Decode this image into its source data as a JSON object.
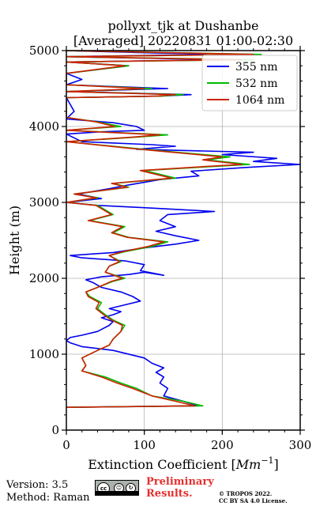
{
  "chart_data": {
    "type": "line",
    "title_line1": "pollyxt_tjk at Dushanbe",
    "title_line2": "[Averaged] 20220831 01:00-02:30",
    "xlabel": "Extinction Coefficient [",
    "xlabel_unit": "Mm",
    "xlabel_exp": "−1",
    "xlabel_close": "]",
    "ylabel": "Height (m)",
    "xlim": [
      0,
      300
    ],
    "ylim": [
      0,
      5000
    ],
    "xticks": [
      "0",
      "100",
      "200",
      "300"
    ],
    "yticks": [
      "0",
      "1000",
      "2000",
      "3000",
      "4000",
      "5000"
    ],
    "grid": true,
    "legend_position": "upper-right",
    "series": [
      {
        "name": "355 nm",
        "color": "#0000ee",
        "points": [
          [
            0,
            300
          ],
          [
            170,
            320
          ],
          [
            150,
            380
          ],
          [
            125,
            450
          ],
          [
            130,
            550
          ],
          [
            120,
            620
          ],
          [
            125,
            700
          ],
          [
            115,
            760
          ],
          [
            125,
            820
          ],
          [
            110,
            880
          ],
          [
            100,
            950
          ],
          [
            60,
            1050
          ],
          [
            20,
            1100
          ],
          [
            5,
            1150
          ],
          [
            0,
            1180
          ],
          [
            5,
            1220
          ],
          [
            20,
            1250
          ],
          [
            40,
            1300
          ],
          [
            55,
            1380
          ],
          [
            60,
            1430
          ],
          [
            45,
            1480
          ],
          [
            60,
            1520
          ],
          [
            70,
            1560
          ],
          [
            55,
            1600
          ],
          [
            75,
            1650
          ],
          [
            95,
            1700
          ],
          [
            85,
            1760
          ],
          [
            70,
            1820
          ],
          [
            45,
            1880
          ],
          [
            35,
            1940
          ],
          [
            25,
            1980
          ],
          [
            45,
            2020
          ],
          [
            80,
            2050
          ],
          [
            100,
            2080
          ],
          [
            125,
            2040
          ],
          [
            95,
            2100
          ],
          [
            100,
            2180
          ],
          [
            75,
            2230
          ],
          [
            20,
            2270
          ],
          [
            5,
            2300
          ],
          [
            60,
            2340
          ],
          [
            100,
            2400
          ],
          [
            140,
            2450
          ],
          [
            170,
            2500
          ],
          [
            140,
            2560
          ],
          [
            115,
            2620
          ],
          [
            140,
            2680
          ],
          [
            120,
            2760
          ],
          [
            130,
            2840
          ],
          [
            190,
            2880
          ],
          [
            100,
            2930
          ],
          [
            40,
            2960
          ],
          [
            0,
            3000
          ],
          [
            45,
            3050
          ],
          [
            15,
            3110
          ],
          [
            55,
            3180
          ],
          [
            80,
            3230
          ],
          [
            120,
            3300
          ],
          [
            170,
            3350
          ],
          [
            160,
            3410
          ],
          [
            230,
            3460
          ],
          [
            300,
            3500
          ],
          [
            240,
            3540
          ],
          [
            270,
            3580
          ],
          [
            200,
            3630
          ],
          [
            240,
            3660
          ],
          [
            90,
            3700
          ],
          [
            140,
            3740
          ],
          [
            110,
            3760
          ],
          [
            20,
            3800
          ],
          [
            0,
            3900
          ],
          [
            45,
            3930
          ],
          [
            100,
            3950
          ],
          [
            90,
            4000
          ],
          [
            60,
            4050
          ],
          [
            0,
            4100
          ],
          [
            10,
            4200
          ],
          [
            0,
            4380
          ],
          [
            120,
            4400
          ],
          [
            160,
            4420
          ],
          [
            0,
            4460
          ],
          [
            130,
            4500
          ],
          [
            0,
            4550
          ],
          [
            20,
            4620
          ],
          [
            0,
            4700
          ],
          [
            80,
            4800
          ],
          [
            0,
            4850
          ],
          [
            200,
            4880
          ],
          [
            0,
            4920
          ],
          [
            180,
            4950
          ],
          [
            0,
            5000
          ]
        ]
      },
      {
        "name": "532 nm",
        "color": "#00bb00",
        "points": [
          [
            0,
            300
          ],
          [
            175,
            320
          ],
          [
            150,
            380
          ],
          [
            110,
            450
          ],
          [
            90,
            550
          ],
          [
            70,
            620
          ],
          [
            50,
            700
          ],
          [
            20,
            780
          ],
          [
            25,
            850
          ],
          [
            20,
            950
          ],
          [
            40,
            1050
          ],
          [
            55,
            1120
          ],
          [
            60,
            1200
          ],
          [
            70,
            1300
          ],
          [
            75,
            1380
          ],
          [
            60,
            1450
          ],
          [
            50,
            1520
          ],
          [
            40,
            1600
          ],
          [
            45,
            1680
          ],
          [
            30,
            1760
          ],
          [
            25,
            1820
          ],
          [
            40,
            1880
          ],
          [
            60,
            1960
          ],
          [
            75,
            2000
          ],
          [
            50,
            2080
          ],
          [
            55,
            2160
          ],
          [
            70,
            2220
          ],
          [
            55,
            2300
          ],
          [
            75,
            2350
          ],
          [
            110,
            2420
          ],
          [
            130,
            2480
          ],
          [
            80,
            2540
          ],
          [
            60,
            2600
          ],
          [
            75,
            2680
          ],
          [
            30,
            2760
          ],
          [
            60,
            2840
          ],
          [
            40,
            2960
          ],
          [
            0,
            3000
          ],
          [
            40,
            3060
          ],
          [
            10,
            3110
          ],
          [
            80,
            3200
          ],
          [
            60,
            3250
          ],
          [
            140,
            3320
          ],
          [
            100,
            3420
          ],
          [
            200,
            3480
          ],
          [
            235,
            3500
          ],
          [
            180,
            3560
          ],
          [
            210,
            3600
          ],
          [
            120,
            3680
          ],
          [
            80,
            3720
          ],
          [
            0,
            3800
          ],
          [
            90,
            3860
          ],
          [
            130,
            3890
          ],
          [
            0,
            3950
          ],
          [
            70,
            4000
          ],
          [
            40,
            4060
          ],
          [
            0,
            4120
          ],
          [
            0,
            4380
          ],
          [
            120,
            4400
          ],
          [
            150,
            4420
          ],
          [
            0,
            4460
          ],
          [
            110,
            4500
          ],
          [
            0,
            4550
          ],
          [
            0,
            4700
          ],
          [
            80,
            4800
          ],
          [
            0,
            4850
          ],
          [
            240,
            4880
          ],
          [
            0,
            4920
          ],
          [
            250,
            4950
          ],
          [
            0,
            5000
          ]
        ]
      },
      {
        "name": "1064 nm",
        "color": "#cc2200",
        "points": [
          [
            0,
            300
          ],
          [
            165,
            320
          ],
          [
            140,
            380
          ],
          [
            110,
            450
          ],
          [
            85,
            550
          ],
          [
            65,
            620
          ],
          [
            45,
            700
          ],
          [
            20,
            780
          ],
          [
            25,
            850
          ],
          [
            20,
            950
          ],
          [
            40,
            1050
          ],
          [
            55,
            1120
          ],
          [
            60,
            1200
          ],
          [
            70,
            1300
          ],
          [
            72,
            1380
          ],
          [
            58,
            1450
          ],
          [
            48,
            1520
          ],
          [
            38,
            1600
          ],
          [
            42,
            1680
          ],
          [
            28,
            1760
          ],
          [
            25,
            1820
          ],
          [
            40,
            1880
          ],
          [
            58,
            1960
          ],
          [
            72,
            2000
          ],
          [
            50,
            2080
          ],
          [
            55,
            2160
          ],
          [
            68,
            2220
          ],
          [
            55,
            2300
          ],
          [
            72,
            2350
          ],
          [
            105,
            2420
          ],
          [
            125,
            2480
          ],
          [
            78,
            2540
          ],
          [
            58,
            2600
          ],
          [
            72,
            2680
          ],
          [
            28,
            2760
          ],
          [
            58,
            2840
          ],
          [
            38,
            2960
          ],
          [
            0,
            3000
          ],
          [
            38,
            3060
          ],
          [
            10,
            3110
          ],
          [
            78,
            3200
          ],
          [
            58,
            3250
          ],
          [
            135,
            3320
          ],
          [
            95,
            3420
          ],
          [
            190,
            3480
          ],
          [
            225,
            3500
          ],
          [
            175,
            3560
          ],
          [
            200,
            3600
          ],
          [
            115,
            3680
          ],
          [
            75,
            3720
          ],
          [
            0,
            3800
          ],
          [
            85,
            3860
          ],
          [
            120,
            3890
          ],
          [
            0,
            3950
          ],
          [
            62,
            4000
          ],
          [
            38,
            4060
          ],
          [
            0,
            4120
          ],
          [
            0,
            4380
          ],
          [
            115,
            4400
          ],
          [
            140,
            4420
          ],
          [
            0,
            4460
          ],
          [
            100,
            4500
          ],
          [
            0,
            4550
          ],
          [
            0,
            4700
          ],
          [
            75,
            4800
          ],
          [
            0,
            4850
          ],
          [
            225,
            4880
          ],
          [
            0,
            4920
          ],
          [
            240,
            4950
          ],
          [
            0,
            5000
          ]
        ]
      }
    ]
  },
  "footer": {
    "version": "Version: 3.5",
    "method": "Method: Raman",
    "license_badge_icon": "creative-commons-by-sa-icon",
    "preliminary_line1": "Preliminary",
    "preliminary_line2": "Results.",
    "copyright_line1": "© TROPOS 2022.",
    "copyright_line2": "CC BY SA 4.0 License."
  }
}
